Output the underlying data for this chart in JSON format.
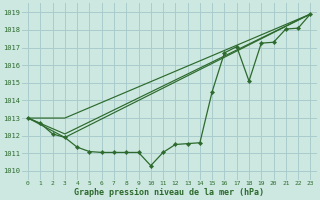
{
  "bg_color": "#cce8e0",
  "grid_color": "#aacccc",
  "line_color": "#2d6a2d",
  "xlabel": "Graphe pression niveau de la mer (hPa)",
  "xlim": [
    -0.5,
    23.5
  ],
  "ylim": [
    1009.5,
    1019.5
  ],
  "yticks": [
    1010,
    1011,
    1012,
    1013,
    1014,
    1015,
    1016,
    1017,
    1018,
    1019
  ],
  "xticks": [
    0,
    1,
    2,
    3,
    4,
    5,
    6,
    7,
    8,
    9,
    10,
    11,
    12,
    13,
    14,
    15,
    16,
    17,
    18,
    19,
    20,
    21,
    22,
    23
  ],
  "main_line": {
    "x": [
      0,
      1,
      2,
      3,
      4,
      5,
      6,
      7,
      8,
      9,
      10,
      11,
      12,
      13,
      14,
      15,
      16,
      17,
      18,
      19,
      20,
      21,
      22,
      23
    ],
    "y": [
      1013.0,
      1012.7,
      1012.1,
      1011.9,
      1011.35,
      1011.1,
      1011.05,
      1011.05,
      1011.05,
      1011.05,
      1010.3,
      1011.05,
      1011.5,
      1011.55,
      1011.6,
      1014.5,
      1016.7,
      1017.05,
      1015.1,
      1017.25,
      1017.3,
      1018.05,
      1018.1,
      1018.9
    ]
  },
  "straight_lines": [
    {
      "x": [
        0,
        3,
        23
      ],
      "y": [
        1013.0,
        1013.0,
        1018.9
      ]
    },
    {
      "x": [
        0,
        3,
        23
      ],
      "y": [
        1013.0,
        1012.1,
        1018.9
      ]
    },
    {
      "x": [
        0,
        3,
        23
      ],
      "y": [
        1013.0,
        1011.9,
        1018.9
      ]
    }
  ]
}
